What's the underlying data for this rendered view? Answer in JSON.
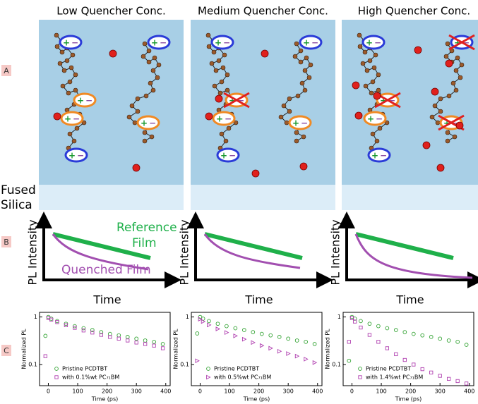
{
  "column_titles": [
    "Low Quencher Conc.",
    "Medium Quencher Conc.",
    "High Quencher Conc."
  ],
  "row_labels": [
    "A",
    "B",
    "C"
  ],
  "substrate_label": [
    "Fused",
    "Silica"
  ],
  "charge_symbols": [
    "+",
    "−"
  ],
  "sketch": {
    "y_label": "PL Intensity",
    "x_label": "Time",
    "reference_label": [
      "Reference",
      "Film"
    ],
    "quenched_label": "Quenched Film"
  },
  "chart_data": [
    {
      "type": "scatter",
      "y_label": "Normalized PL",
      "x_label": "Time (ps)",
      "log_y": true,
      "xlim": [
        -30,
        415
      ],
      "xticks": [
        0,
        100,
        200,
        300,
        400
      ],
      "ylim": [
        0.036,
        1.25
      ],
      "yticks": [
        0.1,
        1
      ],
      "x": [
        -10,
        0,
        10,
        30,
        60,
        90,
        120,
        150,
        180,
        210,
        240,
        270,
        300,
        330,
        360,
        390
      ],
      "series": [
        {
          "name": "Pristine PCDTBT",
          "color": "#33a333",
          "marker": "circle",
          "values": [
            0.4,
            1.0,
            0.92,
            0.82,
            0.72,
            0.64,
            0.58,
            0.53,
            0.48,
            0.44,
            0.41,
            0.38,
            0.35,
            0.32,
            0.3,
            0.27
          ]
        },
        {
          "name": "with 0.1%wt PC₇₁BM",
          "color": "#b040b0",
          "marker": "square",
          "values": [
            0.15,
            0.95,
            0.88,
            0.78,
            0.67,
            0.59,
            0.52,
            0.47,
            0.42,
            0.38,
            0.35,
            0.32,
            0.29,
            0.27,
            0.25,
            0.22
          ]
        }
      ]
    },
    {
      "type": "scatter",
      "y_label": "Normalized PL",
      "x_label": "Time (ps)",
      "log_y": true,
      "xlim": [
        -30,
        415
      ],
      "xticks": [
        0,
        100,
        200,
        300,
        400
      ],
      "ylim": [
        0.036,
        1.25
      ],
      "yticks": [
        0.1,
        1
      ],
      "x": [
        -10,
        0,
        10,
        30,
        60,
        90,
        120,
        150,
        180,
        210,
        240,
        270,
        300,
        330,
        360,
        390
      ],
      "series": [
        {
          "name": "Pristine PCDTBT",
          "color": "#33a333",
          "marker": "circle",
          "values": [
            0.45,
            1.0,
            0.92,
            0.82,
            0.72,
            0.64,
            0.58,
            0.53,
            0.48,
            0.44,
            0.41,
            0.38,
            0.35,
            0.32,
            0.3,
            0.27
          ]
        },
        {
          "name": "with 0.5%wt PC₇₁BM",
          "color": "#b040b0",
          "marker": "triangle",
          "values": [
            0.12,
            0.9,
            0.8,
            0.68,
            0.56,
            0.47,
            0.4,
            0.34,
            0.29,
            0.25,
            0.22,
            0.19,
            0.17,
            0.15,
            0.13,
            0.11
          ]
        }
      ]
    },
    {
      "type": "scatter",
      "y_label": "Normalized PL",
      "x_label": "Time (ps)",
      "log_y": true,
      "xlim": [
        -30,
        415
      ],
      "xticks": [
        0,
        100,
        200,
        300,
        400
      ],
      "ylim": [
        0.036,
        1.25
      ],
      "yticks": [
        0.1,
        1
      ],
      "x": [
        -10,
        0,
        10,
        30,
        60,
        90,
        120,
        150,
        180,
        210,
        240,
        270,
        300,
        330,
        360,
        390
      ],
      "series": [
        {
          "name": "Pristine PCDTBT",
          "color": "#33a333",
          "marker": "circle",
          "values": [
            0.12,
            1.0,
            0.92,
            0.82,
            0.72,
            0.64,
            0.58,
            0.53,
            0.48,
            0.44,
            0.41,
            0.38,
            0.35,
            0.32,
            0.3,
            0.26
          ]
        },
        {
          "name": "with 1.4%wt PC₇₁BM",
          "color": "#b040b0",
          "marker": "square",
          "values": [
            0.3,
            0.95,
            0.8,
            0.6,
            0.42,
            0.3,
            0.22,
            0.165,
            0.125,
            0.1,
            0.08,
            0.068,
            0.058,
            0.05,
            0.045,
            0.04
          ]
        }
      ]
    }
  ]
}
